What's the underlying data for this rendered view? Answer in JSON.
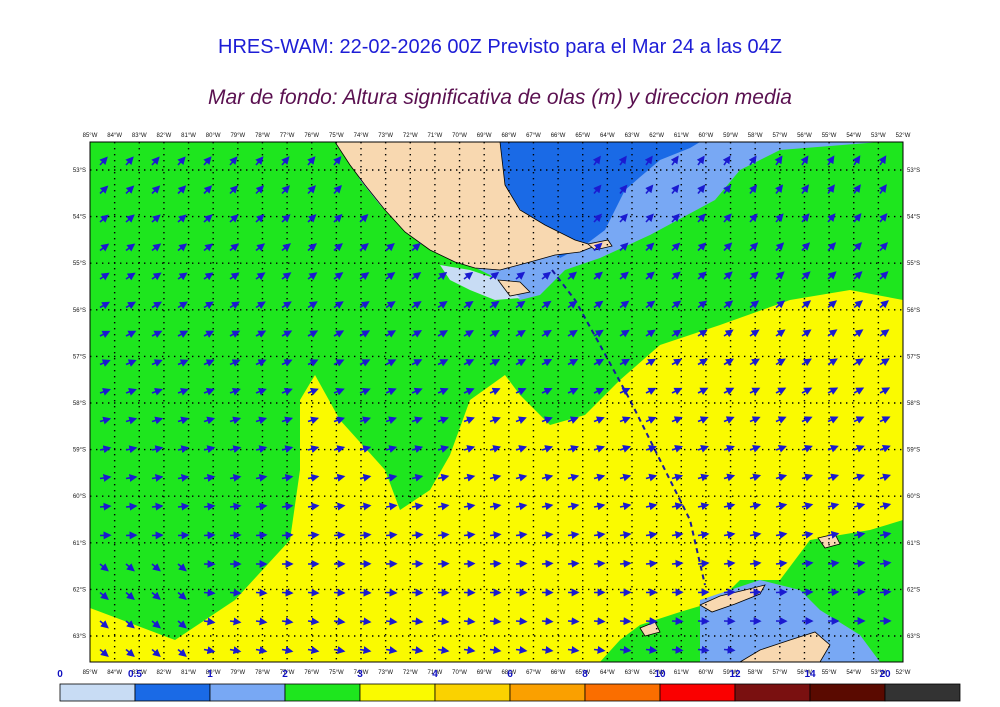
{
  "header": {
    "title": "HRES-WAM: 22-02-2026 00Z Previsto para el Mar 24 a las 04Z",
    "subtitle": "Mar de fondo: Altura significativa de olas (m) y direccion media"
  },
  "map": {
    "lon_labels": [
      "85°W",
      "84°W",
      "83°W",
      "82°W",
      "81°W",
      "80°W",
      "79°W",
      "78°W",
      "77°W",
      "76°W",
      "75°W",
      "74°W",
      "73°W",
      "72°W",
      "71°W",
      "70°W",
      "69°W",
      "68°W",
      "67°W",
      "66°W",
      "65°W",
      "64°W",
      "63°W",
      "62°W",
      "61°W",
      "60°W",
      "59°W",
      "58°W",
      "57°W",
      "56°W",
      "55°W",
      "54°W",
      "53°W",
      "52°W"
    ],
    "lat_labels": [
      "53°S",
      "54°S",
      "55°S",
      "56°S",
      "57°S",
      "58°S",
      "59°S",
      "60°S",
      "61°S",
      "62°S",
      "63°S"
    ]
  },
  "colorbar": {
    "labels": [
      "0",
      "0.5",
      "1",
      "2",
      "3",
      "4",
      "6",
      "8",
      "10",
      "12",
      "14",
      "20"
    ],
    "colors": [
      "#c8dcf4",
      "#1a6ae6",
      "#78a8f4",
      "#1ee61e",
      "#fafa00",
      "#fad200",
      "#faa000",
      "#fa6e00",
      "#fa0000",
      "#7a1010",
      "#5a0a00",
      "#333333"
    ]
  },
  "palette": {
    "land": "#f8d8b0",
    "track": "#1a1aa0",
    "arrow": "#1a1ad0",
    "grid_label": "#111111",
    "colorbar_label": "#1010c0"
  }
}
